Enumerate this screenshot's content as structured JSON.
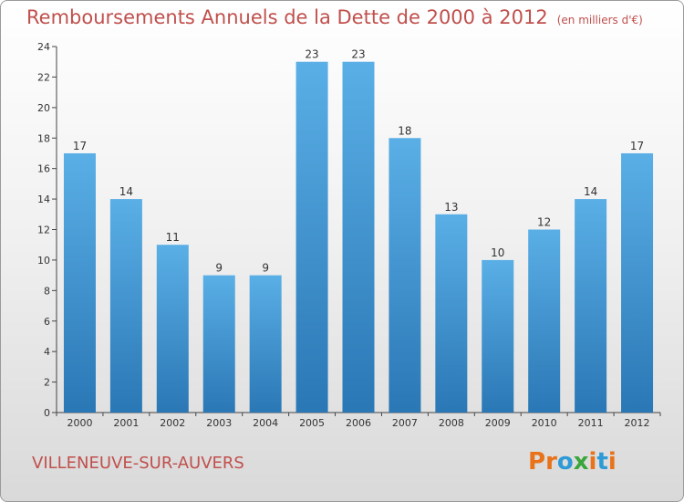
{
  "header": {
    "title": "Remboursements Annuels de la Dette de 2000 à 2012",
    "unit": "(en milliers d'€)"
  },
  "footer": {
    "city": "VILLENEUVE-SUR-AUVERS",
    "logo_text": "Proxiti"
  },
  "colors": {
    "title": "#c0504d",
    "bar_light": "#5aafe6",
    "bar_dark": "#2a77b5",
    "logo": [
      "#e8731a",
      "#e8731a",
      "#2e9bd6",
      "#3aa63c",
      "#e8731a",
      "#2e9bd6",
      "#e8731a"
    ]
  },
  "chart_data": {
    "type": "bar",
    "title": "Remboursements Annuels de la Dette de 2000 à 2012",
    "xlabel": "",
    "ylabel": "",
    "categories": [
      "2000",
      "2001",
      "2002",
      "2003",
      "2004",
      "2005",
      "2006",
      "2007",
      "2008",
      "2009",
      "2010",
      "2011",
      "2012"
    ],
    "values": [
      17,
      14,
      11,
      9,
      9,
      23,
      23,
      18,
      13,
      10,
      12,
      14,
      17
    ],
    "ylim": [
      0,
      24
    ],
    "yticks": [
      0,
      2,
      4,
      6,
      8,
      10,
      12,
      14,
      16,
      18,
      20,
      22,
      24
    ],
    "grid": false,
    "data_labels": true
  }
}
